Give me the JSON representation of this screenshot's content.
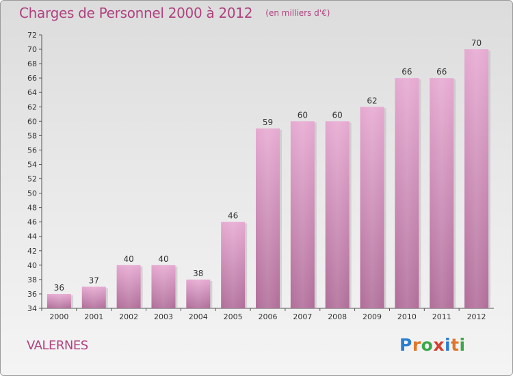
{
  "title": "Charges de Personnel 2000 à 2012",
  "subtitle": "(en milliers d'€)",
  "commune": "VALERNES",
  "logo": {
    "text": "Proxiti",
    "colors": [
      "#2a7ed0",
      "#e0762a",
      "#3aa84a",
      "#d43f2f",
      "#2a7ed0",
      "#e0762a",
      "#3aa84a"
    ]
  },
  "chart_data": {
    "type": "bar",
    "title": "Charges de Personnel 2000 à 2012",
    "subtitle": "(en milliers d'€)",
    "categories": [
      "2000",
      "2001",
      "2002",
      "2003",
      "2004",
      "2005",
      "2006",
      "2007",
      "2008",
      "2009",
      "2010",
      "2011",
      "2012"
    ],
    "values": [
      36,
      37,
      40,
      40,
      38,
      46,
      59,
      60,
      60,
      62,
      66,
      66,
      70
    ],
    "ylim": [
      34,
      72
    ],
    "ytick_step": 2,
    "grid": false,
    "bar_color": "#d67fb5"
  }
}
